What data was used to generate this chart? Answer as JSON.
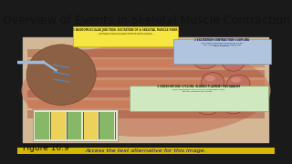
{
  "title": "Overview of Events in Skeletal Muscle Contraction",
  "figure_label": "Figure 10.9",
  "footer_text": "Access the text alternative for this image.",
  "bg_color": "#ffffff",
  "outer_bg": "#1a1a1a",
  "title_fontsize": 9,
  "figure_label_fontsize": 6.5,
  "footer_fontsize": 4.5,
  "yellow_box_color": "#f5e642",
  "blue_box_color": "#b0c4de",
  "green_box_color": "#d0e8c0"
}
